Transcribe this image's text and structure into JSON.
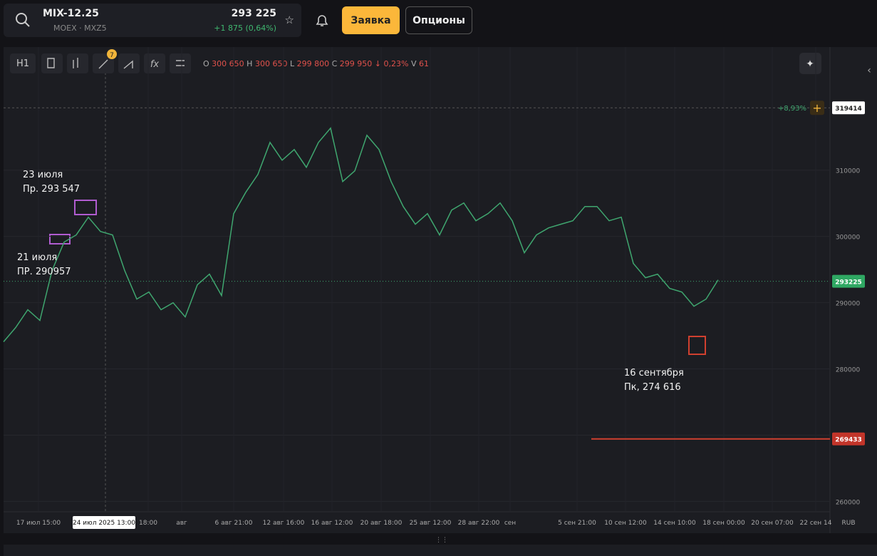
{
  "header": {
    "symbol": "MIX-12.25",
    "exchange": "MOEX · MXZ5",
    "price": "293 225",
    "change": "+1 875 (0,64%)",
    "order_button": "Заявка",
    "options_button": "Опционы"
  },
  "toolbar": {
    "interval": "H1",
    "badge": "7",
    "ohlc": [
      {
        "key": "O",
        "value": "300 650"
      },
      {
        "key": "H",
        "value": "300 650"
      },
      {
        "key": "L",
        "value": "299 800"
      },
      {
        "key": "C",
        "value": "299 950"
      }
    ],
    "change": "↓ 0,23%",
    "volume_key": "V",
    "volume": "61"
  },
  "chart_data": {
    "type": "line",
    "color": "#3fa66f",
    "values": [
      284090,
      286240,
      288930,
      287315,
      294840,
      299140,
      300215,
      302900,
      300750,
      300215,
      294840,
      290540,
      291615,
      288930,
      289990,
      287850,
      292690,
      294300,
      291080,
      303440,
      306665,
      309350,
      314190,
      311500,
      313115,
      310430,
      314190,
      316340,
      308280,
      309890,
      315265,
      313115,
      308280,
      304515,
      301830,
      303440,
      300215,
      303980,
      305050,
      302365,
      303440,
      305050,
      302365,
      297530,
      300215,
      301290,
      301830,
      302365,
      304515,
      304515,
      302365,
      302900,
      295915,
      293765,
      294300,
      292150,
      291615,
      289465,
      290540,
      293440
    ],
    "ylim": [
      258000,
      326000
    ],
    "yticks": [
      260000,
      270000,
      280000,
      290000,
      300000,
      310000
    ],
    "xlabels": [
      "17 июл 15:00",
      "18:00",
      "авг",
      "6 авг 21:00",
      "12 авг 16:00",
      "16 авг 12:00",
      "20 авг 18:00",
      "25 авг 12:00",
      "28 авг 22:00",
      "сен",
      "5 сен 21:00",
      "10 сен 12:00",
      "14 сен 10:00",
      "18 сен 00:00",
      "20 сен 07:00",
      "22 сен 14"
    ],
    "cursor_label": "24 июл 2025 13:00",
    "unit": "RUB",
    "price_lines": [
      {
        "value": 319414,
        "change": "+8,93%"
      },
      {
        "value": 293225
      },
      {
        "value": 269433
      }
    ],
    "annotations": [
      {
        "date": "23 июля",
        "text": "Пр. 293 547"
      },
      {
        "date": "21 июля",
        "text": "ПР. 290957"
      },
      {
        "date": "16 сентября",
        "text": "Пк, 274 616"
      }
    ]
  }
}
